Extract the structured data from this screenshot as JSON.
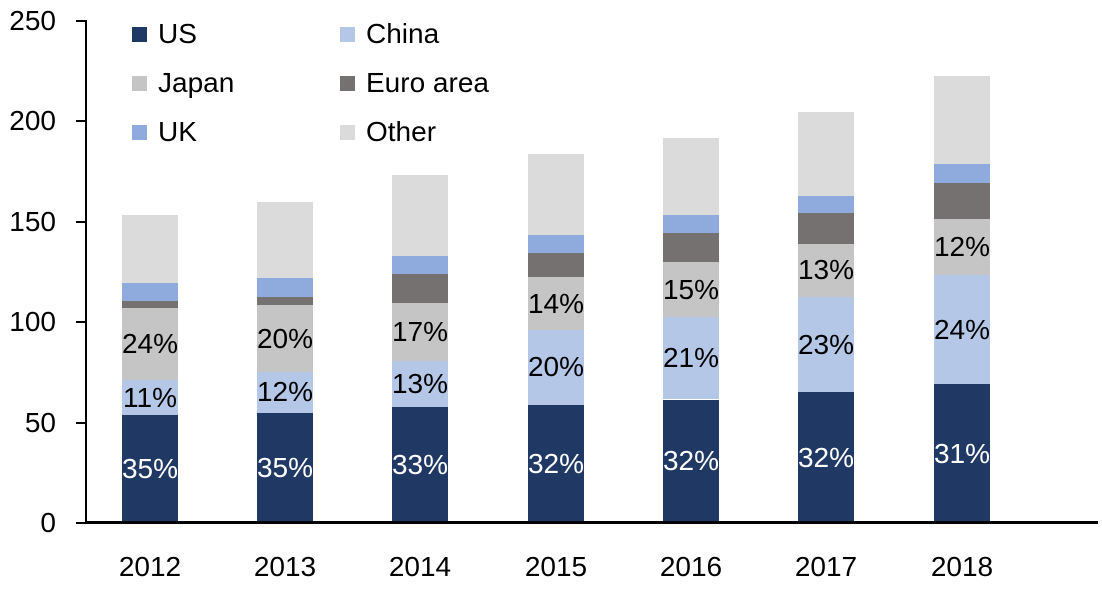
{
  "chart_data": {
    "type": "bar",
    "subtype": "stacked",
    "title": "",
    "xlabel": "",
    "ylabel": "",
    "grid": "off",
    "background_color": "#FFFFFF",
    "axis_color": "#000000",
    "text_color": "#000000",
    "categories": [
      "2012",
      "2013",
      "2014",
      "2015",
      "2016",
      "2017",
      "2018"
    ],
    "series": [
      {
        "name": "US",
        "color": "#1F3864",
        "values": [
          54,
          55,
          58,
          59,
          61.5,
          65,
          69
        ],
        "segment_labels": [
          "35%",
          "35%",
          "33%",
          "32%",
          "32%",
          "32%",
          "31%"
        ],
        "label_color": "#FFFFFF"
      },
      {
        "name": "China",
        "color": "#B4C7E7",
        "values": [
          17,
          20,
          22.5,
          37,
          41,
          47.5,
          54.5
        ],
        "segment_labels": [
          "11%",
          "12%",
          "13%",
          "20%",
          "21%",
          "23%",
          "24%"
        ],
        "label_color": "#000000"
      },
      {
        "name": "Japan",
        "color": "#C5C5C5",
        "values": [
          36,
          33.5,
          29,
          26.5,
          27.5,
          26.5,
          28
        ],
        "segment_labels": [
          "24%",
          "20%",
          "17%",
          "14%",
          "15%",
          "13%",
          "12%"
        ],
        "label_color": "#000000"
      },
      {
        "name": "Euro area",
        "color": "#767171",
        "values": [
          3.5,
          4,
          14.5,
          12,
          14.5,
          15.5,
          18
        ],
        "segment_labels": null
      },
      {
        "name": "UK",
        "color": "#8FAADC",
        "values": [
          9,
          9.5,
          9,
          9,
          9,
          8.5,
          9.5
        ],
        "segment_labels": null
      },
      {
        "name": "Other",
        "color": "#DBDBDB",
        "values": [
          34,
          38,
          40.5,
          40.5,
          38,
          41.5,
          43.5
        ],
        "segment_labels": null
      }
    ],
    "stack_order_bottom_to_top": [
      "US",
      "China",
      "Japan",
      "Euro area",
      "UK",
      "Other"
    ],
    "totals_approx": [
      153.5,
      160,
      173.5,
      184,
      191.5,
      204.5,
      222.5
    ],
    "ylim": [
      0,
      250
    ],
    "yticks": [
      "0",
      "50",
      "100",
      "150",
      "200",
      "250"
    ],
    "legend_position": "top-left-inside",
    "legend_columns": [
      [
        "US",
        "Japan",
        "UK"
      ],
      [
        "China",
        "Euro area",
        "Other"
      ]
    ]
  }
}
